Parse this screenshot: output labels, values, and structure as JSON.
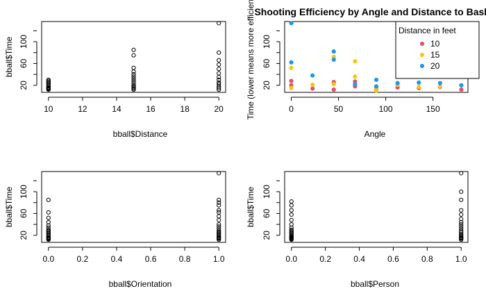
{
  "chart_data": [
    {
      "type": "scatter",
      "xlabel": "bball$Distance",
      "ylabel": "bball$Time",
      "xlim": [
        9.6,
        20.4
      ],
      "ylim": [
        7,
        137
      ],
      "xticks": [
        10,
        12,
        14,
        16,
        18,
        20
      ],
      "yticks": [
        20,
        60,
        100
      ],
      "x": [
        10,
        10,
        10,
        10,
        10,
        10,
        10,
        10,
        10,
        10,
        10,
        10,
        15,
        15,
        15,
        15,
        15,
        15,
        15,
        15,
        15,
        15,
        15,
        15,
        15,
        15,
        20,
        20,
        20,
        20,
        20,
        20,
        20,
        20,
        20,
        20,
        20,
        20,
        20
      ],
      "y": [
        12,
        13,
        14,
        15,
        16,
        18,
        20,
        22,
        24,
        26,
        28,
        30,
        12,
        14,
        16,
        18,
        20,
        24,
        28,
        32,
        36,
        40,
        45,
        52,
        75,
        85,
        12,
        15,
        18,
        22,
        25,
        30,
        35,
        42,
        50,
        58,
        66,
        80,
        134
      ]
    },
    {
      "type": "scatter",
      "title": "Shooting Efficiency by Angle and Distance to Basket",
      "xlabel": "Angle",
      "ylabel": "Time (lower means more efficient)",
      "xlim": [
        -7,
        187
      ],
      "ylim": [
        7,
        137
      ],
      "xticks": [
        0,
        50,
        100,
        150
      ],
      "yticks": [
        20,
        60,
        100
      ],
      "legend": {
        "title": "Distance in feet",
        "position": "top-right"
      },
      "series": [
        {
          "name": "10",
          "color": "#DF536B",
          "x": [
            0,
            0,
            22.5,
            45,
            45,
            67.5,
            67.5,
            90,
            90,
            112.5,
            135,
            157.5,
            180
          ],
          "y": [
            20,
            28,
            14,
            12,
            26,
            18,
            27,
            12,
            15,
            16,
            15,
            17,
            12
          ]
        },
        {
          "name": "15",
          "color": "#F5C710",
          "x": [
            0,
            0,
            22.5,
            45,
            45,
            67.5,
            67.5,
            90,
            90,
            112.5,
            135,
            157.5,
            180
          ],
          "y": [
            52,
            15,
            21,
            22,
            72,
            36,
            64,
            10,
            15,
            21,
            17,
            18,
            20
          ]
        },
        {
          "name": "20",
          "color": "#2297E6",
          "x": [
            0,
            0,
            22.5,
            45,
            45,
            67.5,
            90,
            90,
            112.5,
            135,
            157.5,
            180
          ],
          "y": [
            134,
            62,
            38,
            82,
            67,
            22,
            30,
            18,
            24,
            25,
            24,
            20
          ]
        }
      ]
    },
    {
      "type": "scatter",
      "xlabel": "bball$Orientation",
      "ylabel": "bball$Time",
      "xlim": [
        -0.04,
        1.04
      ],
      "ylim": [
        7,
        137
      ],
      "xticks": [
        0.0,
        0.2,
        0.4,
        0.6,
        0.8,
        1.0
      ],
      "xtick_labels": [
        "0.0",
        "0.2",
        "0.4",
        "0.6",
        "0.8",
        "1.0"
      ],
      "yticks": [
        20,
        60,
        100
      ],
      "x": [
        0,
        0,
        0,
        0,
        0,
        0,
        0,
        0,
        0,
        0,
        0,
        0,
        0,
        0,
        0,
        0,
        0,
        0,
        1,
        1,
        1,
        1,
        1,
        1,
        1,
        1,
        1,
        1,
        1,
        1,
        1,
        1,
        1,
        1,
        1,
        1,
        1,
        1,
        1
      ],
      "y": [
        12,
        13,
        14,
        15,
        16,
        18,
        20,
        22,
        24,
        26,
        28,
        30,
        34,
        38,
        44,
        52,
        62,
        85,
        12,
        14,
        15,
        16,
        18,
        20,
        22,
        24,
        26,
        28,
        32,
        36,
        40,
        48,
        55,
        62,
        66,
        75,
        80,
        85,
        134
      ]
    },
    {
      "type": "scatter",
      "xlabel": "bball$Person",
      "ylabel": "bball$Time",
      "xlim": [
        -0.04,
        1.04
      ],
      "ylim": [
        7,
        137
      ],
      "xticks": [
        0.0,
        0.2,
        0.4,
        0.6,
        0.8,
        1.0
      ],
      "xtick_labels": [
        "0.0",
        "0.2",
        "0.4",
        "0.6",
        "0.8",
        "1.0"
      ],
      "yticks": [
        20,
        60,
        100
      ],
      "x": [
        0,
        0,
        0,
        0,
        0,
        0,
        0,
        0,
        0,
        0,
        0,
        0,
        0,
        0,
        0,
        0,
        0,
        0,
        0,
        0,
        1,
        1,
        1,
        1,
        1,
        1,
        1,
        1,
        1,
        1,
        1,
        1,
        1,
        1,
        1,
        1,
        1,
        1,
        1
      ],
      "y": [
        12,
        13,
        14,
        15,
        16,
        17,
        18,
        20,
        22,
        24,
        26,
        28,
        30,
        34,
        40,
        48,
        58,
        66,
        75,
        82,
        12,
        14,
        15,
        16,
        18,
        20,
        22,
        25,
        28,
        32,
        36,
        40,
        44,
        50,
        58,
        66,
        85,
        100,
        134
      ]
    }
  ]
}
